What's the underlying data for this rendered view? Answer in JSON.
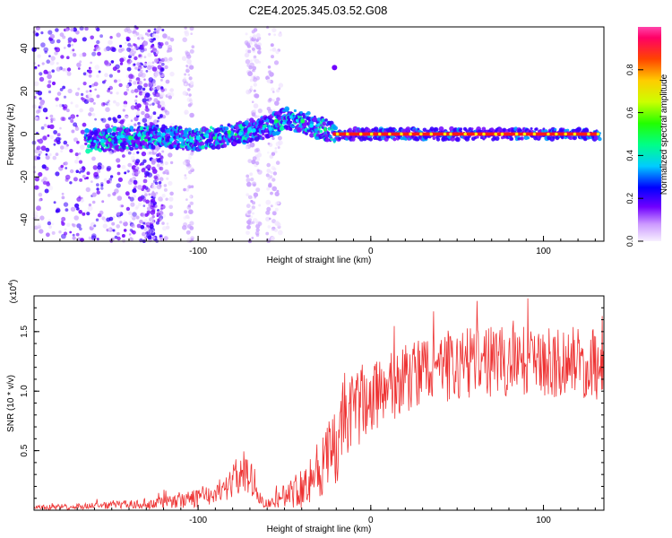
{
  "title": "C2E4.2025.345.03.52.G08",
  "chart_data": [
    {
      "type": "heatmap",
      "name": "spectrogram",
      "xlabel": "Height of straight line (km)",
      "ylabel": "Frequency (Hz)",
      "xlim": [
        -195,
        135
      ],
      "ylim": [
        -50,
        50
      ],
      "x_ticks": [
        -100,
        0,
        100
      ],
      "y_ticks": [
        -40,
        -20,
        0,
        20,
        40
      ],
      "colorbar": {
        "label": "Normalized spectral amplitude",
        "range": [
          0,
          1
        ],
        "ticks": [
          0.0,
          0.2,
          0.4,
          0.6,
          0.8
        ]
      },
      "ridge_x": [
        -160,
        -140,
        -120,
        -100,
        -80,
        -60,
        -50,
        -40,
        -30,
        -20,
        0,
        50,
        100,
        130
      ],
      "ridge_y": [
        -3,
        -2,
        -1,
        -3,
        0,
        3,
        7,
        6,
        3,
        0,
        0,
        0,
        0,
        0
      ]
    },
    {
      "type": "line",
      "name": "snr",
      "xlabel": "Height of straight line (km)",
      "ylabel": "SNR (10 * v/v)",
      "y_multiplier": "(x10",
      "y_multiplier_exp": "4",
      "y_multiplier_close": ")",
      "xlim": [
        -195,
        135
      ],
      "ylim": [
        0,
        1.8
      ],
      "x_ticks": [
        -100,
        0,
        100
      ],
      "y_ticks": [
        0.5,
        1.0,
        1.5
      ],
      "y_tick_labels": [
        "0.5",
        "1.0",
        "1.5"
      ],
      "color": "#ee3333",
      "envelope_x": [
        -195,
        -150,
        -120,
        -100,
        -85,
        -75,
        -68,
        -62,
        -55,
        -40,
        -20,
        -10,
        0,
        20,
        40,
        60,
        80,
        100,
        120,
        135
      ],
      "envelope_y": [
        0.02,
        0.04,
        0.06,
        0.1,
        0.18,
        0.3,
        0.25,
        0.05,
        0.08,
        0.2,
        0.5,
        0.85,
        0.95,
        1.1,
        1.2,
        1.25,
        1.25,
        1.25,
        1.25,
        1.2
      ],
      "noise_y": [
        0.02,
        0.03,
        0.05,
        0.08,
        0.1,
        0.18,
        0.15,
        0.03,
        0.06,
        0.18,
        0.35,
        0.35,
        0.3,
        0.3,
        0.3,
        0.3,
        0.3,
        0.3,
        0.3,
        0.3
      ]
    }
  ]
}
